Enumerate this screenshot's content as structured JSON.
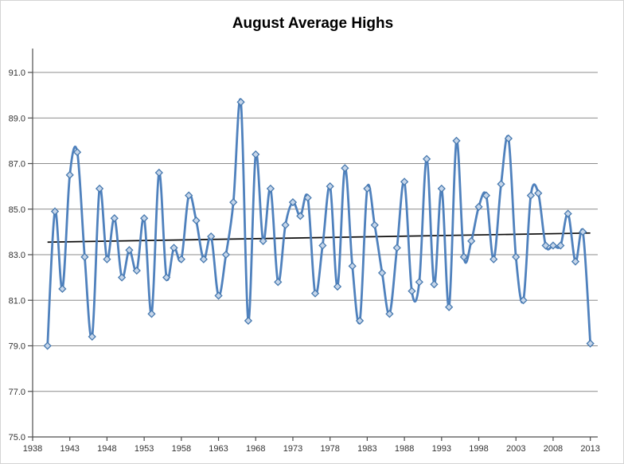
{
  "chart_title": "August Average Highs",
  "chart_data": {
    "type": "line",
    "title": "August Average Highs",
    "xlabel": "",
    "ylabel": "",
    "legend": "none",
    "grid": true,
    "smooth_line": true,
    "marker_shape": "diamond",
    "x": [
      1940,
      1941,
      1942,
      1943,
      1944,
      1945,
      1946,
      1947,
      1948,
      1949,
      1950,
      1951,
      1952,
      1953,
      1954,
      1955,
      1956,
      1957,
      1958,
      1959,
      1960,
      1961,
      1962,
      1963,
      1964,
      1965,
      1966,
      1967,
      1968,
      1969,
      1970,
      1971,
      1972,
      1973,
      1974,
      1975,
      1976,
      1977,
      1978,
      1979,
      1980,
      1981,
      1982,
      1983,
      1984,
      1985,
      1986,
      1987,
      1988,
      1989,
      1990,
      1991,
      1992,
      1993,
      1994,
      1995,
      1996,
      1997,
      1998,
      1999,
      2000,
      2001,
      2002,
      2003,
      2004,
      2005,
      2006,
      2007,
      2008,
      2009,
      2010,
      2011,
      2012,
      2013
    ],
    "series": [
      {
        "name": "August Average Highs",
        "values": [
          79.0,
          84.9,
          81.5,
          86.5,
          87.5,
          82.9,
          79.4,
          85.9,
          82.8,
          84.6,
          82.0,
          83.2,
          82.3,
          84.6,
          80.4,
          86.6,
          82.0,
          83.3,
          82.8,
          85.6,
          84.5,
          82.8,
          83.8,
          81.2,
          83.0,
          85.3,
          89.7,
          80.1,
          87.4,
          83.6,
          85.9,
          81.8,
          84.3,
          85.3,
          84.7,
          85.5,
          81.3,
          83.4,
          86.0,
          81.6,
          86.8,
          82.5,
          80.1,
          85.9,
          84.3,
          82.2,
          80.4,
          83.3,
          86.2,
          81.4,
          81.8,
          87.2,
          81.7,
          85.9,
          80.7,
          88.0,
          82.9,
          83.6,
          85.1,
          85.6,
          82.8,
          86.1,
          88.1,
          82.9,
          81.0,
          85.6,
          85.7,
          83.4,
          83.4,
          83.4,
          84.8,
          82.7,
          84.0,
          79.1
        ]
      }
    ],
    "trendline": {
      "type": "linear",
      "x_start": 1940,
      "y_start": 83.55,
      "x_end": 2013,
      "y_end": 83.95
    },
    "x_axis": {
      "min": 1938,
      "max": 2014,
      "tick_interval": 5,
      "tick_labels": [
        "1938",
        "1943",
        "1948",
        "1953",
        "1958",
        "1963",
        "1968",
        "1973",
        "1978",
        "1983",
        "1988",
        "1993",
        "1998",
        "2003",
        "2008",
        "2013"
      ]
    },
    "y_axis": {
      "min": 75.0,
      "max": 92.0,
      "tick_interval": 2.0,
      "tick_labels": [
        "75.0",
        "77.0",
        "79.0",
        "81.0",
        "83.0",
        "85.0",
        "87.0",
        "89.0",
        "91.0"
      ]
    },
    "colors": {
      "line": "#4F81BD",
      "marker_fill": "#C6D6EA",
      "marker_stroke": "#4779AF",
      "trendline": "#0D0D0D",
      "gridline": "#8C8C8C",
      "axis": "#4D4D4D",
      "text": "#333333",
      "title_text": "#000000",
      "background": "#FFFFFF",
      "frame_border": "#D4D4D4"
    }
  }
}
